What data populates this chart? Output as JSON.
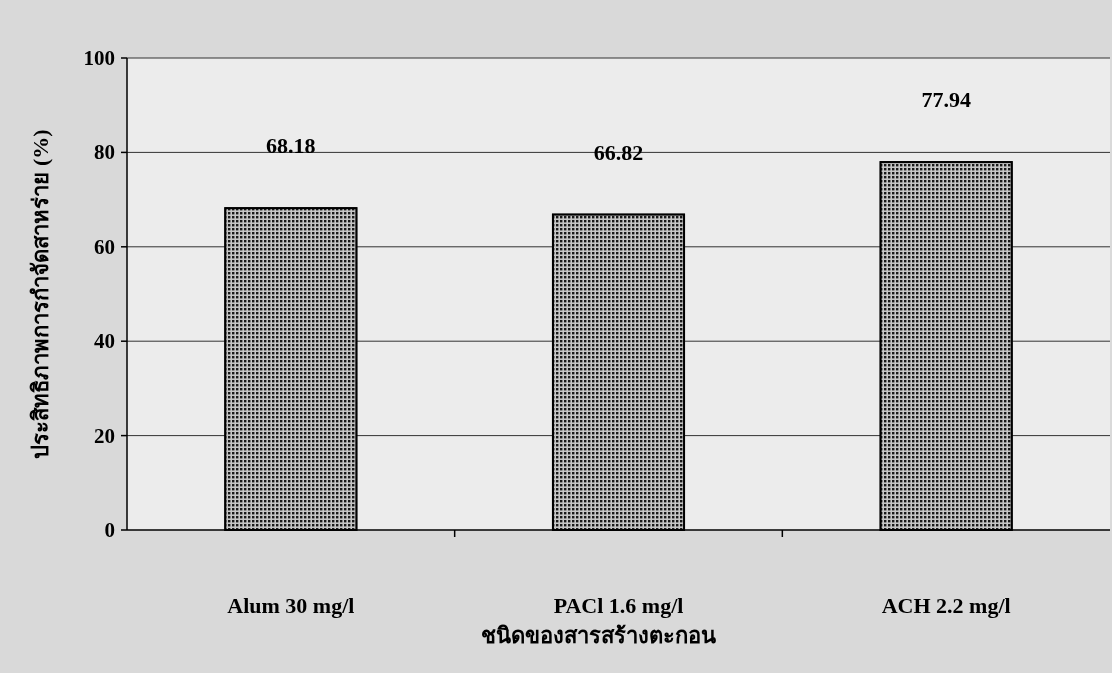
{
  "chart_data": {
    "type": "bar",
    "xlabel": "ชนิดของสารสร้างตะกอน",
    "ylabel": "ประสิทธิภาพการกำจัดสาหร่าย (%)",
    "categories": [
      "Alum 30 mg/l",
      "PACl 1.6 mg/l",
      "ACH 2.2 mg/l"
    ],
    "values": [
      68.18,
      66.82,
      77.94
    ],
    "color": "#6a6a6a",
    "data_labels": true,
    "ylim": [
      0,
      100
    ],
    "yticks": [
      0,
      20,
      40,
      60,
      80,
      100
    ],
    "grid": "y"
  }
}
